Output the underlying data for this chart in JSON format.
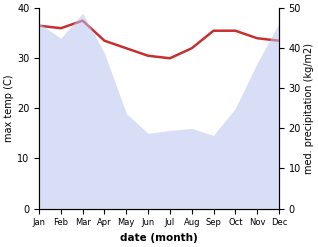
{
  "months": [
    "Jan",
    "Feb",
    "Mar",
    "Apr",
    "May",
    "Jun",
    "Jul",
    "Aug",
    "Sep",
    "Oct",
    "Nov",
    "Dec"
  ],
  "max_temp": [
    36.5,
    36.0,
    37.5,
    33.5,
    32.0,
    30.5,
    30.0,
    32.0,
    35.5,
    35.5,
    34.0,
    33.5
  ],
  "precipitation": [
    185,
    170,
    195,
    155,
    95,
    75,
    78,
    80,
    73,
    100,
    145,
    185
  ],
  "temp_color": "#c83030",
  "precip_color_fill": "#b8c4ee",
  "temp_ylim": [
    0,
    40
  ],
  "precip_ylim": [
    0,
    200
  ],
  "temp_yticks": [
    0,
    10,
    20,
    30,
    40
  ],
  "precip_yticks": [
    0,
    10,
    20,
    30,
    40,
    50
  ],
  "precip_ytick_labels": [
    "0",
    "10",
    "20",
    "30",
    "40",
    "50"
  ],
  "xlabel": "date (month)",
  "ylabel_left": "max temp (C)",
  "ylabel_right": "med. precipitation (kg/m2)",
  "temp_linewidth": 1.8,
  "fill_alpha": 0.55
}
